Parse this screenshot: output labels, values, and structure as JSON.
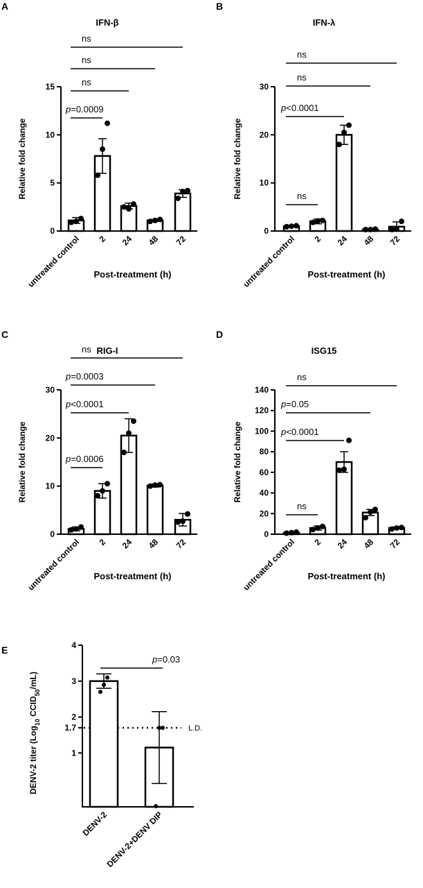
{
  "chart_data": [
    {
      "type": "bar",
      "panel": "A",
      "title": "IFN-β",
      "ylabel": "Relative fold change",
      "xlabel": "Post-treatment (h)",
      "categories": [
        "untreated control",
        "2",
        "24",
        "48",
        "72"
      ],
      "values": [
        1.1,
        7.8,
        2.6,
        1.1,
        3.9
      ],
      "errors": [
        0.3,
        1.8,
        0.3,
        0.1,
        0.4
      ],
      "points": [
        [
          0.9,
          1.0,
          1.3
        ],
        [
          5.8,
          8.5,
          11.2
        ],
        [
          2.5,
          2.3,
          2.8
        ],
        [
          1.0,
          1.1,
          1.2
        ],
        [
          3.4,
          4.1,
          4.2
        ]
      ],
      "ylim": [
        0,
        15
      ],
      "yticks": [
        "0",
        "5",
        "10",
        "15"
      ],
      "ytick_values": [
        0,
        5,
        10,
        15
      ],
      "comparisons": [
        {
          "to": 1,
          "prefix": "p",
          "text": "=0.0009"
        },
        {
          "to": 2,
          "prefix": "",
          "text": "ns"
        },
        {
          "to": 3,
          "prefix": "",
          "text": "ns"
        },
        {
          "to": 4,
          "prefix": "",
          "text": "ns"
        }
      ]
    },
    {
      "type": "bar",
      "panel": "B",
      "title": "IFN-λ",
      "ylabel": "Relative fold change",
      "xlabel": "Post-treatment (h)",
      "categories": [
        "untreated control",
        "2",
        "24",
        "48",
        "72"
      ],
      "values": [
        1.0,
        2.0,
        20.0,
        0.3,
        0.9
      ],
      "errors": [
        0.2,
        0.5,
        2.0,
        0.1,
        1.0
      ],
      "points": [
        [
          0.9,
          1.0,
          1.1
        ],
        [
          1.8,
          2.1,
          2.2
        ],
        [
          18.0,
          20.5,
          22.0
        ],
        [
          0.3,
          0.3,
          0.4
        ],
        [
          0.3,
          0.4,
          2.0
        ]
      ],
      "ylim": [
        0,
        30
      ],
      "yticks": [
        "0",
        "10",
        "20",
        "30"
      ],
      "ytick_values": [
        0,
        10,
        20,
        30
      ],
      "comparisons": [
        {
          "to": 1,
          "prefix": "",
          "text": "ns"
        },
        {
          "to": 2,
          "prefix": "p",
          "text": "<0.0001"
        },
        {
          "to": 3,
          "prefix": "",
          "text": "ns"
        },
        {
          "to": 4,
          "prefix": "",
          "text": "ns"
        }
      ]
    },
    {
      "type": "bar",
      "panel": "C",
      "title": "RIG-I",
      "ylabel": "Relative fold change",
      "xlabel": "Post-treatment (h)",
      "categories": [
        "untreated control",
        "2",
        "24",
        "48",
        "72"
      ],
      "values": [
        1.1,
        9.0,
        20.5,
        10.1,
        3.0
      ],
      "errors": [
        0.4,
        1.5,
        3.5,
        0.3,
        1.3
      ],
      "points": [
        [
          0.9,
          1.1,
          1.5
        ],
        [
          8.0,
          9.0,
          10.5
        ],
        [
          17.0,
          21.0,
          23.5
        ],
        [
          10.0,
          10.2,
          10.3
        ],
        [
          2.5,
          2.7,
          4.2
        ]
      ],
      "ylim": [
        0,
        30
      ],
      "yticks": [
        "0",
        "10",
        "20",
        "30"
      ],
      "ytick_values": [
        0,
        10,
        20,
        30
      ],
      "comparisons": [
        {
          "to": 1,
          "prefix": "p",
          "text": "=0.0006"
        },
        {
          "to": 2,
          "prefix": "p",
          "text": "<0.0001"
        },
        {
          "to": 3,
          "prefix": "p",
          "text": "=0.0003"
        },
        {
          "to": 4,
          "prefix": "",
          "text": "ns"
        }
      ]
    },
    {
      "type": "bar",
      "panel": "D",
      "title": "ISG15",
      "ylabel": "Relative fold change",
      "xlabel": "Post-treatment (h)",
      "categories": [
        "untreated control",
        "2",
        "24",
        "48",
        "72"
      ],
      "values": [
        1.5,
        6.0,
        70.0,
        21.0,
        6.0
      ],
      "errors": [
        0.5,
        2.0,
        10.0,
        3.0,
        1.0
      ],
      "points": [
        [
          1.0,
          1.5,
          2.0
        ],
        [
          4.5,
          6.0,
          7.5
        ],
        [
          62.0,
          63.0,
          91.0
        ],
        [
          16.0,
          21.5,
          24.0
        ],
        [
          5.0,
          6.0,
          6.5
        ]
      ],
      "ylim": [
        0,
        140
      ],
      "yticks": [
        "0",
        "20",
        "40",
        "60",
        "80",
        "100",
        "120",
        "140"
      ],
      "ytick_values": [
        0,
        20,
        40,
        60,
        80,
        100,
        120,
        140
      ],
      "comparisons": [
        {
          "to": 1,
          "prefix": "",
          "text": "ns"
        },
        {
          "to": 2,
          "prefix": "p",
          "text": "<0.0001"
        },
        {
          "to": 3,
          "prefix": "p",
          "text": "=0.05"
        },
        {
          "to": 4,
          "prefix": "",
          "text": "ns"
        }
      ]
    },
    {
      "type": "bar",
      "panel": "E",
      "title": "",
      "ylabel_main": "DENV-2 titer (Log",
      "ylabel_sub1": "10",
      "ylabel_mid": " CCID",
      "ylabel_sub2": "50",
      "ylabel_end": "/mL)",
      "xlabel": "",
      "categories": [
        "DENV-2",
        "DENV-2+DENV DIP"
      ],
      "values": [
        3.0,
        1.15
      ],
      "errors": [
        0.2,
        1.0
      ],
      "points": [
        [
          2.7,
          2.9,
          3.1
        ],
        [
          -0.5,
          1.7,
          1.7
        ]
      ],
      "ylim": [
        -0.5,
        4
      ],
      "yticks": [
        "1",
        "1.7",
        "2",
        "3",
        "4"
      ],
      "ytick_values": [
        1,
        1.7,
        2,
        3,
        4
      ],
      "detection_limit": 1.7,
      "detection_label": "L.D.",
      "comparisons": [
        {
          "to": 1,
          "prefix": "p",
          "text": "=0.03"
        }
      ]
    }
  ]
}
